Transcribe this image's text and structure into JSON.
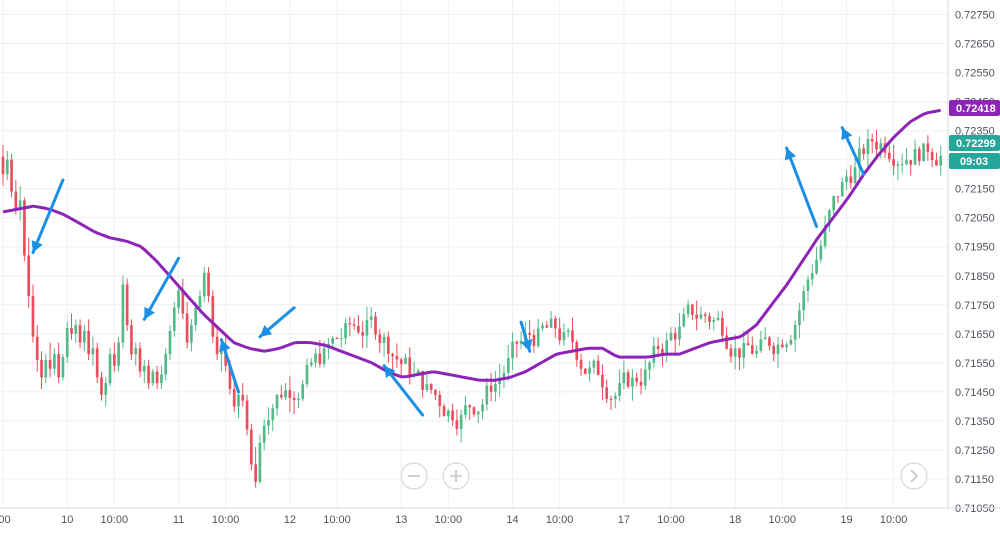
{
  "chart_data": {
    "type": "candlestick",
    "ylim": [
      0.7105,
      0.728
    ],
    "price_scale": {
      "ticks": [
        "0.72750",
        "0.72650",
        "0.72550",
        "0.72450",
        "0.72350",
        "0.72250",
        "0.72150",
        "0.72050",
        "0.71950",
        "0.71850",
        "0.71750",
        "0.71650",
        "0.71550",
        "0.71450",
        "0.71350",
        "0.71250",
        "0.71150",
        "0.71050"
      ]
    },
    "time_scale": {
      "labels": [
        {
          "text": ":00",
          "idx": 0
        },
        {
          "text": "10",
          "idx": 15
        },
        {
          "text": "10:00",
          "idx": 26
        },
        {
          "text": "11",
          "idx": 41
        },
        {
          "text": "10:00",
          "idx": 52
        },
        {
          "text": "12",
          "idx": 67
        },
        {
          "text": "10:00",
          "idx": 78
        },
        {
          "text": "13",
          "idx": 93
        },
        {
          "text": "10:00",
          "idx": 104
        },
        {
          "text": "14",
          "idx": 119
        },
        {
          "text": "10:00",
          "idx": 130
        },
        {
          "text": "17",
          "idx": 145
        },
        {
          "text": "10:00",
          "idx": 156
        },
        {
          "text": "18",
          "idx": 171
        },
        {
          "text": "10:00",
          "idx": 182
        },
        {
          "text": "19",
          "idx": 197
        },
        {
          "text": "10:00",
          "idx": 208
        }
      ]
    },
    "moving_average": {
      "color": "#8e24b7",
      "current_label": "0.72418",
      "values": [
        0.7207,
        0.7208,
        0.7209,
        0.7208,
        0.7206,
        0.7203,
        0.72,
        0.7198,
        0.7197,
        0.7195,
        0.719,
        0.7184,
        0.7178,
        0.7172,
        0.7167,
        0.7162,
        0.716,
        0.7159,
        0.716,
        0.7162,
        0.7162,
        0.7161,
        0.7159,
        0.7157,
        0.7155,
        0.7152,
        0.715,
        0.7151,
        0.7152,
        0.7151,
        0.715,
        0.7149,
        0.7149,
        0.715,
        0.7152,
        0.7155,
        0.7158,
        0.7159,
        0.716,
        0.716,
        0.7157,
        0.7157,
        0.7157,
        0.7158,
        0.7158,
        0.716,
        0.7162,
        0.7163,
        0.7164,
        0.7168,
        0.7175,
        0.7182,
        0.719,
        0.7198,
        0.7205,
        0.7212,
        0.722,
        0.7227,
        0.7233,
        0.7238,
        0.7241,
        0.7242
      ]
    },
    "last_price": {
      "label": "0.72299",
      "timer": "09:03",
      "color": "#26a69a"
    },
    "colors": {
      "up": "#53b987",
      "down": "#eb4d5c",
      "arrow": "#1a8fe3",
      "ma_badge": "#8e24b7"
    },
    "candles_ohlc": [
      [
        0.7226,
        0.723,
        0.7216,
        0.722
      ],
      [
        0.722,
        0.7228,
        0.7218,
        0.7225
      ],
      [
        0.7225,
        0.7227,
        0.7212,
        0.7214
      ],
      [
        0.7214,
        0.7218,
        0.7206,
        0.7208
      ],
      [
        0.7208,
        0.7216,
        0.7204,
        0.7211
      ],
      [
        0.7211,
        0.7212,
        0.719,
        0.7192
      ],
      [
        0.7192,
        0.7198,
        0.7174,
        0.7178
      ],
      [
        0.7178,
        0.7182,
        0.7162,
        0.7164
      ],
      [
        0.7164,
        0.7168,
        0.7152,
        0.7156
      ],
      [
        0.7156,
        0.7159,
        0.7146,
        0.715
      ],
      [
        0.715,
        0.7158,
        0.7148,
        0.7156
      ],
      [
        0.7156,
        0.7162,
        0.715,
        0.7153
      ],
      [
        0.7153,
        0.716,
        0.7151,
        0.7158
      ],
      [
        0.7158,
        0.7162,
        0.7148,
        0.715
      ],
      [
        0.715,
        0.7158,
        0.7149,
        0.7157
      ],
      [
        0.7157,
        0.7169,
        0.7155,
        0.7167
      ],
      [
        0.7167,
        0.7172,
        0.7163,
        0.7165
      ],
      [
        0.7165,
        0.717,
        0.7162,
        0.7168
      ],
      [
        0.7168,
        0.717,
        0.716,
        0.7162
      ],
      [
        0.7162,
        0.7168,
        0.7159,
        0.7166
      ],
      [
        0.7166,
        0.717,
        0.7156,
        0.7158
      ],
      [
        0.7158,
        0.7164,
        0.7154,
        0.716
      ],
      [
        0.716,
        0.7162,
        0.7148,
        0.715
      ],
      [
        0.715,
        0.7152,
        0.7142,
        0.7144
      ],
      [
        0.7144,
        0.715,
        0.714,
        0.7148
      ],
      [
        0.7148,
        0.716,
        0.7147,
        0.7158
      ],
      [
        0.7158,
        0.7162,
        0.7152,
        0.7154
      ],
      [
        0.7154,
        0.7164,
        0.7152,
        0.7162
      ],
      [
        0.7162,
        0.7185,
        0.716,
        0.7182
      ],
      [
        0.7182,
        0.7184,
        0.7166,
        0.7168
      ],
      [
        0.7168,
        0.717,
        0.7156,
        0.7158
      ],
      [
        0.7158,
        0.7162,
        0.7154,
        0.716
      ],
      [
        0.716,
        0.7162,
        0.715,
        0.7152
      ],
      [
        0.7152,
        0.7156,
        0.7148,
        0.7154
      ],
      [
        0.7154,
        0.7156,
        0.7146,
        0.7148
      ],
      [
        0.7148,
        0.7153,
        0.7147,
        0.7152
      ],
      [
        0.7152,
        0.7154,
        0.7146,
        0.7148
      ],
      [
        0.7148,
        0.7154,
        0.7146,
        0.7151
      ],
      [
        0.7151,
        0.716,
        0.7149,
        0.7158
      ],
      [
        0.7158,
        0.7168,
        0.7156,
        0.7166
      ],
      [
        0.7166,
        0.7176,
        0.7164,
        0.7174
      ],
      [
        0.7174,
        0.7182,
        0.7172,
        0.718
      ],
      [
        0.718,
        0.7184,
        0.717,
        0.7172
      ],
      [
        0.7172,
        0.7176,
        0.716,
        0.7162
      ],
      [
        0.7162,
        0.717,
        0.7159,
        0.7168
      ],
      [
        0.7168,
        0.7176,
        0.7166,
        0.7174
      ],
      [
        0.7174,
        0.718,
        0.7172,
        0.7178
      ],
      [
        0.7178,
        0.7188,
        0.7176,
        0.7186
      ],
      [
        0.7186,
        0.7188,
        0.7176,
        0.7178
      ],
      [
        0.7178,
        0.718,
        0.7162,
        0.7164
      ],
      [
        0.7164,
        0.7168,
        0.7156,
        0.7158
      ],
      [
        0.7158,
        0.7162,
        0.7152,
        0.716
      ],
      [
        0.716,
        0.7164,
        0.7152,
        0.7154
      ],
      [
        0.7154,
        0.7156,
        0.7144,
        0.7146
      ],
      [
        0.7146,
        0.715,
        0.7138,
        0.714
      ],
      [
        0.714,
        0.7146,
        0.7136,
        0.7144
      ],
      [
        0.7144,
        0.7148,
        0.714,
        0.7142
      ],
      [
        0.7142,
        0.7144,
        0.713,
        0.7132
      ],
      [
        0.7132,
        0.7134,
        0.7118,
        0.712
      ],
      [
        0.712,
        0.7126,
        0.7112,
        0.7114
      ]
    ],
    "arrows": [
      {
        "tail": [
          0.7218,
          14
        ],
        "head": [
          0.7193,
          7
        ]
      },
      {
        "tail": [
          0.7191,
          41
        ],
        "head": [
          0.717,
          33
        ]
      },
      {
        "tail": [
          0.7145,
          55
        ],
        "head": [
          0.7163,
          51
        ]
      },
      {
        "tail": [
          0.7174,
          68
        ],
        "head": [
          0.7164,
          60
        ]
      },
      {
        "tail": [
          0.7137,
          98
        ],
        "head": [
          0.7154,
          89
        ]
      },
      {
        "tail": [
          0.7169,
          121
        ],
        "head": [
          0.7159,
          123
        ]
      },
      {
        "tail": [
          0.7202,
          190
        ],
        "head": [
          0.7229,
          183
        ]
      },
      {
        "tail": [
          0.722,
          201
        ],
        "head": [
          0.7236,
          196
        ]
      }
    ],
    "controls": [
      "zoom-out",
      "zoom-in",
      "scroll-right"
    ]
  }
}
